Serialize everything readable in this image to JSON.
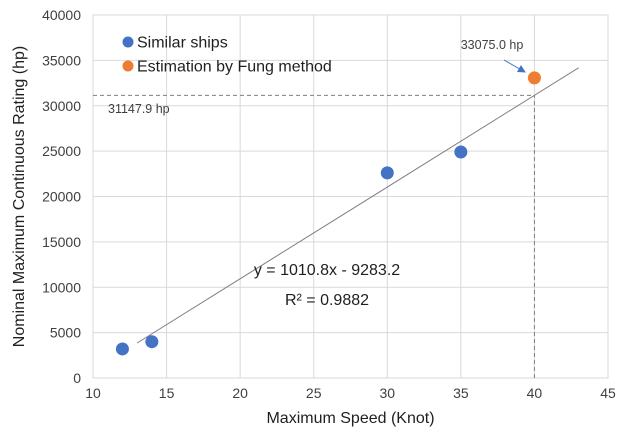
{
  "chart_data": {
    "type": "scatter",
    "xlabel": "Maximum Speed (Knot)",
    "ylabel": "Nominal Maximum Continuous Rating (hp)",
    "xlim": [
      10,
      45
    ],
    "ylim": [
      0,
      40000
    ],
    "xticks": [
      10,
      15,
      20,
      25,
      30,
      35,
      40,
      45
    ],
    "yticks": [
      0,
      5000,
      10000,
      15000,
      20000,
      25000,
      30000,
      35000,
      40000
    ],
    "grid": "both",
    "legend_position": "top-left",
    "series": [
      {
        "name": "Similar ships",
        "color": "#4472C4",
        "x": [
          12,
          14,
          30,
          35
        ],
        "y": [
          3200,
          4000,
          22600,
          24900
        ]
      },
      {
        "name": "Estimation by Fung method",
        "color": "#ED7D31",
        "x": [
          40
        ],
        "y": [
          33075.0
        ]
      }
    ],
    "trendline": {
      "slope": 1010.8,
      "intercept": -9283.2,
      "x_range": [
        13,
        43
      ],
      "color": "#808080"
    },
    "equation_label": "y = 1010.8x - 9283.2",
    "r2_label": "R² = 0.9882",
    "reference_lines": [
      {
        "orientation": "horizontal",
        "value": 31147.9,
        "x_from": 10,
        "x_to": 40,
        "style": "dashed"
      },
      {
        "orientation": "vertical",
        "value": 40,
        "y_from": 0,
        "y_to": 31147.9,
        "style": "dashed"
      }
    ],
    "annotations": [
      {
        "text": "33075.0 hp",
        "x": 40,
        "y": 33075.0,
        "arrow": true
      },
      {
        "text": "31147.9 hp",
        "x": 10,
        "y": 31147.9,
        "arrow": false
      }
    ]
  }
}
